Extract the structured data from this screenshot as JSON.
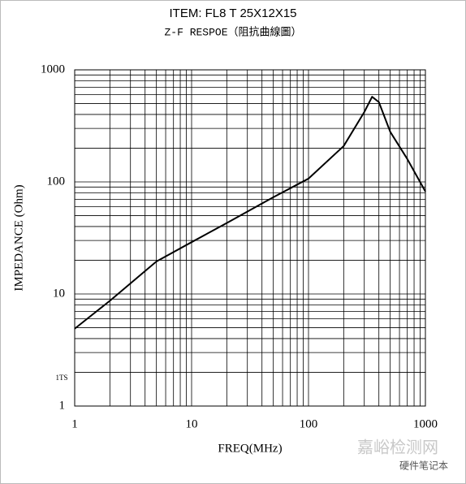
{
  "chart_data": {
    "type": "line",
    "title": "ITEM:   FL8 T 25X12X15",
    "subtitle": "Z-F RESPOE（阻抗曲線圖）",
    "x_label": "FREQ(MHz)",
    "y_label": "IMPEDANCE (Ohm)",
    "annotation": "1TS",
    "watermarks": [
      "嘉峪检测网",
      "硬件笔记本"
    ],
    "x": [
      1,
      2,
      5,
      10,
      20,
      50,
      100,
      200,
      300,
      350,
      400,
      500,
      700,
      1000
    ],
    "series": [
      {
        "name": "Impedance",
        "color": "#000000",
        "values": [
          4.9,
          8.7,
          19.5,
          29,
          43,
          73,
          107,
          209,
          420,
          575,
          515,
          280,
          160,
          82
        ]
      }
    ],
    "xlim": [
      1,
      1000
    ],
    "ylim": [
      1,
      1000
    ],
    "xticks": [
      1,
      10,
      100,
      1000
    ],
    "yticks": [
      1,
      10,
      100,
      1000
    ],
    "xminorticks": [
      2,
      3,
      4,
      5,
      6,
      7,
      8,
      9,
      20,
      30,
      40,
      50,
      60,
      70,
      80,
      90,
      200,
      300,
      400,
      500,
      600,
      700,
      800,
      900
    ],
    "yminorticks": [
      2,
      3,
      4,
      5,
      6,
      7,
      8,
      9,
      20,
      30,
      40,
      50,
      60,
      70,
      80,
      90,
      200,
      300,
      400,
      500,
      600,
      700,
      800,
      900
    ],
    "xscale": "log",
    "yscale": "log",
    "grid": true
  }
}
